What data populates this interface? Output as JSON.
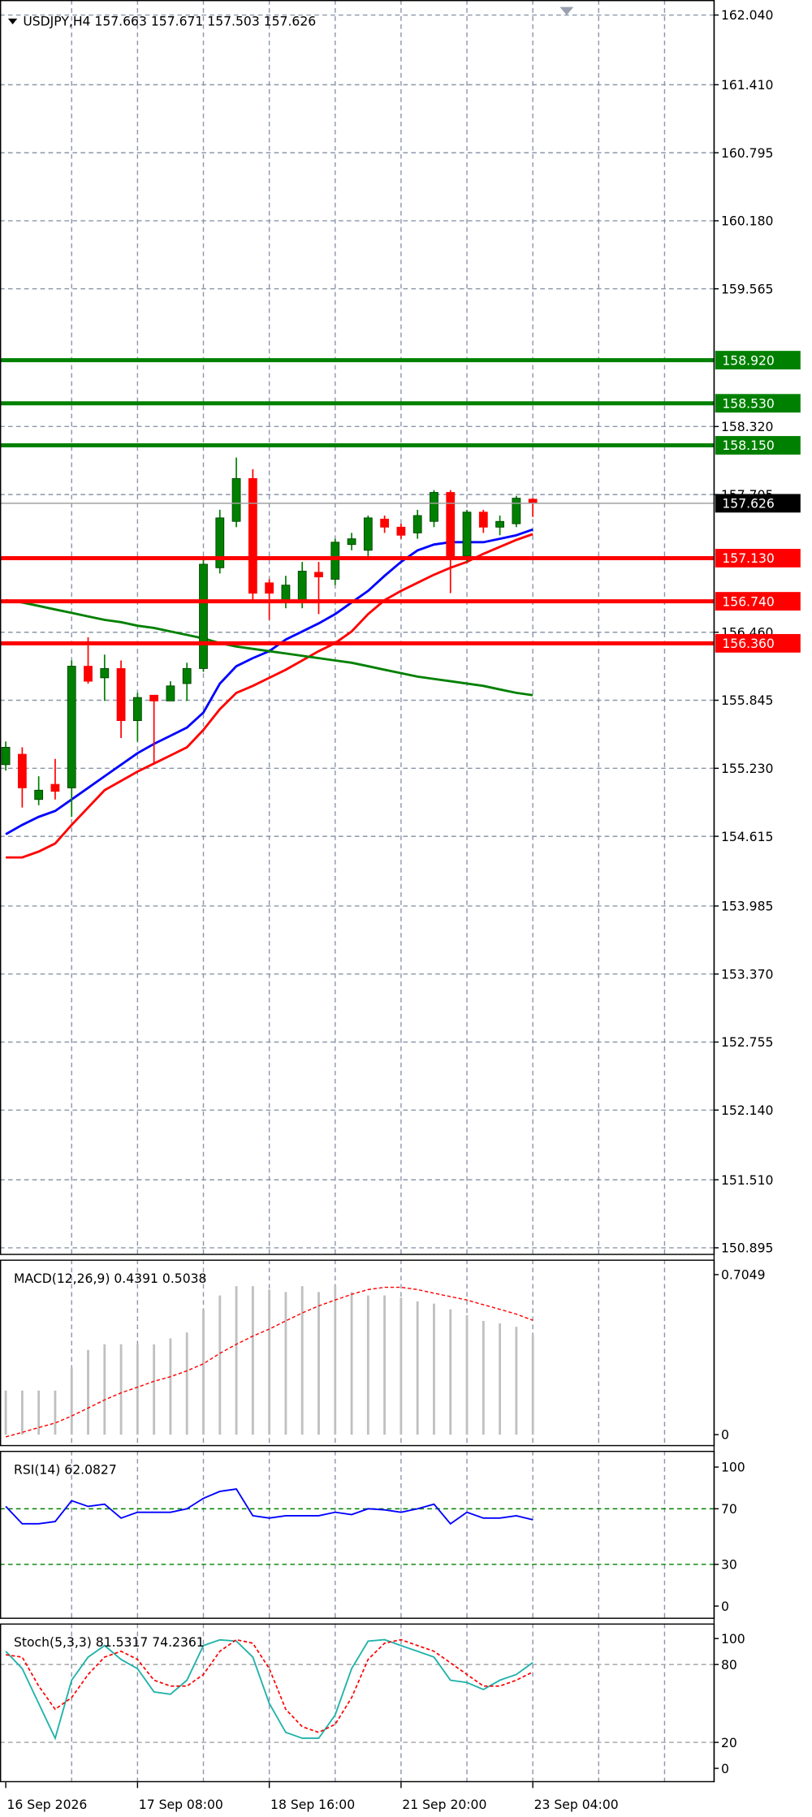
{
  "chart_data": [
    {
      "type": "candlestick",
      "title": "USDJPY,H4  157.663 157.671 157.503 157.626",
      "categories": [
        "16 Sep 2026",
        null,
        null,
        null,
        null,
        null,
        null,
        null,
        "17 Sep 08:00",
        null,
        null,
        null,
        null,
        null,
        null,
        null,
        "18 Sep 16:00",
        null,
        null,
        null,
        null,
        null,
        null,
        null,
        "21 Sep 20:00",
        null,
        null,
        null,
        null,
        null,
        null,
        null,
        "23 Sep 04:00"
      ],
      "open": [
        155.263,
        155.357,
        154.948,
        155.085,
        155.053,
        156.153,
        156.048,
        156.132,
        155.661,
        155.891,
        155.839,
        155.996,
        156.132,
        157.043,
        157.462,
        157.85,
        156.907,
        156.729,
        156.729,
        157.002,
        156.939,
        157.253,
        157.201,
        157.483,
        157.41,
        157.358,
        157.462,
        157.724,
        157.148,
        157.546,
        157.41,
        157.441,
        157.663
      ],
      "high": [
        155.472,
        155.42,
        155.158,
        155.315,
        156.205,
        156.415,
        156.258,
        156.205,
        155.912,
        155.891,
        156.017,
        156.184,
        157.148,
        157.567,
        158.039,
        157.934,
        156.939,
        156.97,
        157.096,
        157.096,
        157.305,
        157.358,
        157.515,
        157.515,
        157.441,
        157.567,
        157.745,
        157.745,
        157.567,
        157.567,
        157.515,
        157.693,
        157.671
      ],
      "low": [
        155.21,
        154.875,
        154.896,
        154.948,
        154.791,
        155.996,
        155.839,
        155.504,
        155.472,
        155.263,
        155.839,
        155.839,
        156.101,
        156.991,
        157.41,
        156.729,
        156.572,
        156.677,
        156.677,
        156.624,
        156.886,
        157.201,
        157.148,
        157.358,
        157.305,
        157.305,
        157.41,
        156.813,
        157.096,
        157.358,
        157.337,
        157.41,
        157.503
      ],
      "close": [
        155.42,
        155.053,
        155.032,
        155.022,
        156.153,
        156.017,
        156.132,
        155.661,
        155.87,
        155.839,
        155.975,
        156.132,
        157.075,
        157.494,
        157.85,
        156.813,
        156.813,
        156.886,
        157.012,
        156.96,
        157.274,
        157.305,
        157.494,
        157.41,
        157.337,
        157.515,
        157.724,
        157.127,
        157.546,
        157.41,
        157.462,
        157.672,
        157.626
      ],
      "up_color": "#008000",
      "down_color": "#ff0000",
      "lines": [
        {
          "color": "#0000ff",
          "values": [
            154.634,
            154.718,
            154.791,
            154.844,
            154.948,
            155.053,
            155.158,
            155.262,
            155.367,
            155.451,
            155.524,
            155.598,
            155.734,
            155.996,
            156.153,
            156.226,
            156.289,
            156.394,
            156.467,
            156.54,
            156.624,
            156.729,
            156.834,
            156.97,
            157.096,
            157.2,
            157.253,
            157.274,
            157.274,
            157.274,
            157.305,
            157.337,
            157.389
          ]
        },
        {
          "color": "#ff0000",
          "values": [
            154.424,
            154.424,
            154.477,
            154.55,
            154.718,
            154.875,
            155.032,
            155.116,
            155.2,
            155.273,
            155.346,
            155.42,
            155.577,
            155.765,
            155.912,
            155.975,
            156.048,
            156.121,
            156.205,
            156.289,
            156.362,
            156.467,
            156.624,
            156.75,
            156.834,
            156.907,
            156.98,
            157.043,
            157.096,
            157.169,
            157.232,
            157.295,
            157.347
          ]
        },
        {
          "color": "#008000",
          "values": [
            156.75,
            156.729,
            156.698,
            156.666,
            156.635,
            156.603,
            156.572,
            156.551,
            156.519,
            156.499,
            156.467,
            156.436,
            156.404,
            156.362,
            156.331,
            156.31,
            156.289,
            156.268,
            156.247,
            156.226,
            156.205,
            156.184,
            156.153,
            156.121,
            156.09,
            156.059,
            156.038,
            156.017,
            155.996,
            155.975,
            155.943,
            155.912,
            155.891
          ]
        }
      ],
      "levels": [
        {
          "value": 158.92,
          "label": "158.920",
          "color": "#008000"
        },
        {
          "value": 158.53,
          "label": "158.530",
          "color": "#008000"
        },
        {
          "value": 158.15,
          "label": "158.150",
          "color": "#008000"
        },
        {
          "value": 157.13,
          "label": "157.130",
          "color": "#ff0000"
        },
        {
          "value": 156.74,
          "label": "156.740",
          "color": "#ff0000"
        },
        {
          "value": 156.36,
          "label": "156.360",
          "color": "#ff0000"
        }
      ],
      "last_price": 157.626,
      "ylim": [
        150.83,
        162.176
      ],
      "yticks": [
        {
          "value": 162.04,
          "label": "162.040"
        },
        {
          "value": 161.41,
          "label": "161.410"
        },
        160.795,
        {
          "value": 160.18,
          "label": "160.180"
        },
        159.565,
        {
          "value": 158.32,
          "label": "158.320"
        },
        157.705,
        {
          "value": 156.46,
          "label": "156.460"
        },
        155.845,
        {
          "value": 155.23,
          "label": "155.230"
        },
        154.615,
        153.985,
        {
          "value": 153.37,
          "label": "153.370"
        },
        152.755,
        {
          "value": 152.14,
          "label": "152.140"
        },
        {
          "value": 151.51,
          "label": "151.510"
        },
        150.895
      ],
      "grid": true
    },
    {
      "type": "macd",
      "title": "MACD(12,26,9) 0.4391 0.5038",
      "values": [
        0.194,
        0.194,
        0.194,
        0.194,
        0.296,
        0.373,
        0.398,
        0.398,
        0.398,
        0.398,
        0.424,
        0.45,
        0.552,
        0.613,
        0.654,
        0.654,
        0.639,
        0.628,
        0.654,
        0.628,
        0.654,
        0.628,
        0.613,
        0.613,
        0.603,
        0.587,
        0.577,
        0.552,
        0.526,
        0.501,
        0.49,
        0.475,
        0.4391
      ],
      "color": "#c0c0c0",
      "signal": [
        -0.01,
        0.01,
        0.031,
        0.051,
        0.082,
        0.117,
        0.153,
        0.184,
        0.209,
        0.235,
        0.255,
        0.281,
        0.312,
        0.358,
        0.398,
        0.434,
        0.465,
        0.501,
        0.536,
        0.567,
        0.593,
        0.618,
        0.639,
        0.649,
        0.649,
        0.639,
        0.623,
        0.608,
        0.593,
        0.572,
        0.552,
        0.531,
        0.5038
      ],
      "signal_color": "#ff0000",
      "ylim": [
        -0.051,
        0.771
      ],
      "yticks": [
        0,
        0.7049
      ]
    },
    {
      "type": "rsi",
      "title": "RSI(14) 62.0827",
      "values": [
        71.7,
        59.2,
        59.2,
        60.8,
        75.8,
        71.7,
        73.3,
        63.3,
        67.5,
        67.5,
        67.5,
        70.0,
        77.5,
        82.5,
        84.2,
        65.0,
        63.3,
        65.0,
        65.0,
        65.0,
        67.5,
        65.8,
        70.0,
        69.2,
        67.5,
        70.0,
        73.3,
        59.2,
        67.5,
        63.3,
        63.3,
        65.0,
        62.0827
      ],
      "color": "#0000ff",
      "levels": [
        70,
        30
      ],
      "level_color": "#008000",
      "ylim": [
        -9.2,
        111.7
      ],
      "yticks": [
        100,
        70,
        30,
        0
      ]
    },
    {
      "type": "stoch",
      "title": "Stoch(5,3,3) 81.5317 74.2361",
      "values": [
        90.2,
        76.8,
        50.0,
        23.2,
        67.9,
        85.7,
        94.6,
        83.9,
        76.8,
        58.9,
        57.1,
        67.9,
        94.6,
        99.0,
        98.0,
        85.7,
        50.0,
        27.7,
        23.2,
        23.2,
        41.1,
        76.8,
        98.0,
        99.1,
        94.6,
        90.2,
        85.7,
        67.9,
        66.1,
        60.7,
        67.9,
        72.3,
        81.5317
      ],
      "color": "#20b2aa",
      "signal": [
        87.5,
        85.7,
        63.4,
        45.5,
        54.5,
        72.3,
        85.7,
        90.2,
        83.9,
        67.9,
        63.4,
        63.4,
        72.3,
        90.2,
        99.1,
        96.4,
        76.8,
        45.5,
        32.1,
        27.7,
        33.9,
        54.5,
        83.9,
        96.4,
        99.1,
        94.6,
        90.2,
        81.3,
        72.3,
        63.4,
        63.4,
        67.9,
        74.2361
      ],
      "signal_color": "#ff0000",
      "levels": [
        80,
        20
      ],
      "level_color": "#a0a0a0",
      "ylim": [
        -10.7,
        111.6
      ],
      "yticks": [
        100,
        80,
        20,
        0
      ]
    }
  ]
}
